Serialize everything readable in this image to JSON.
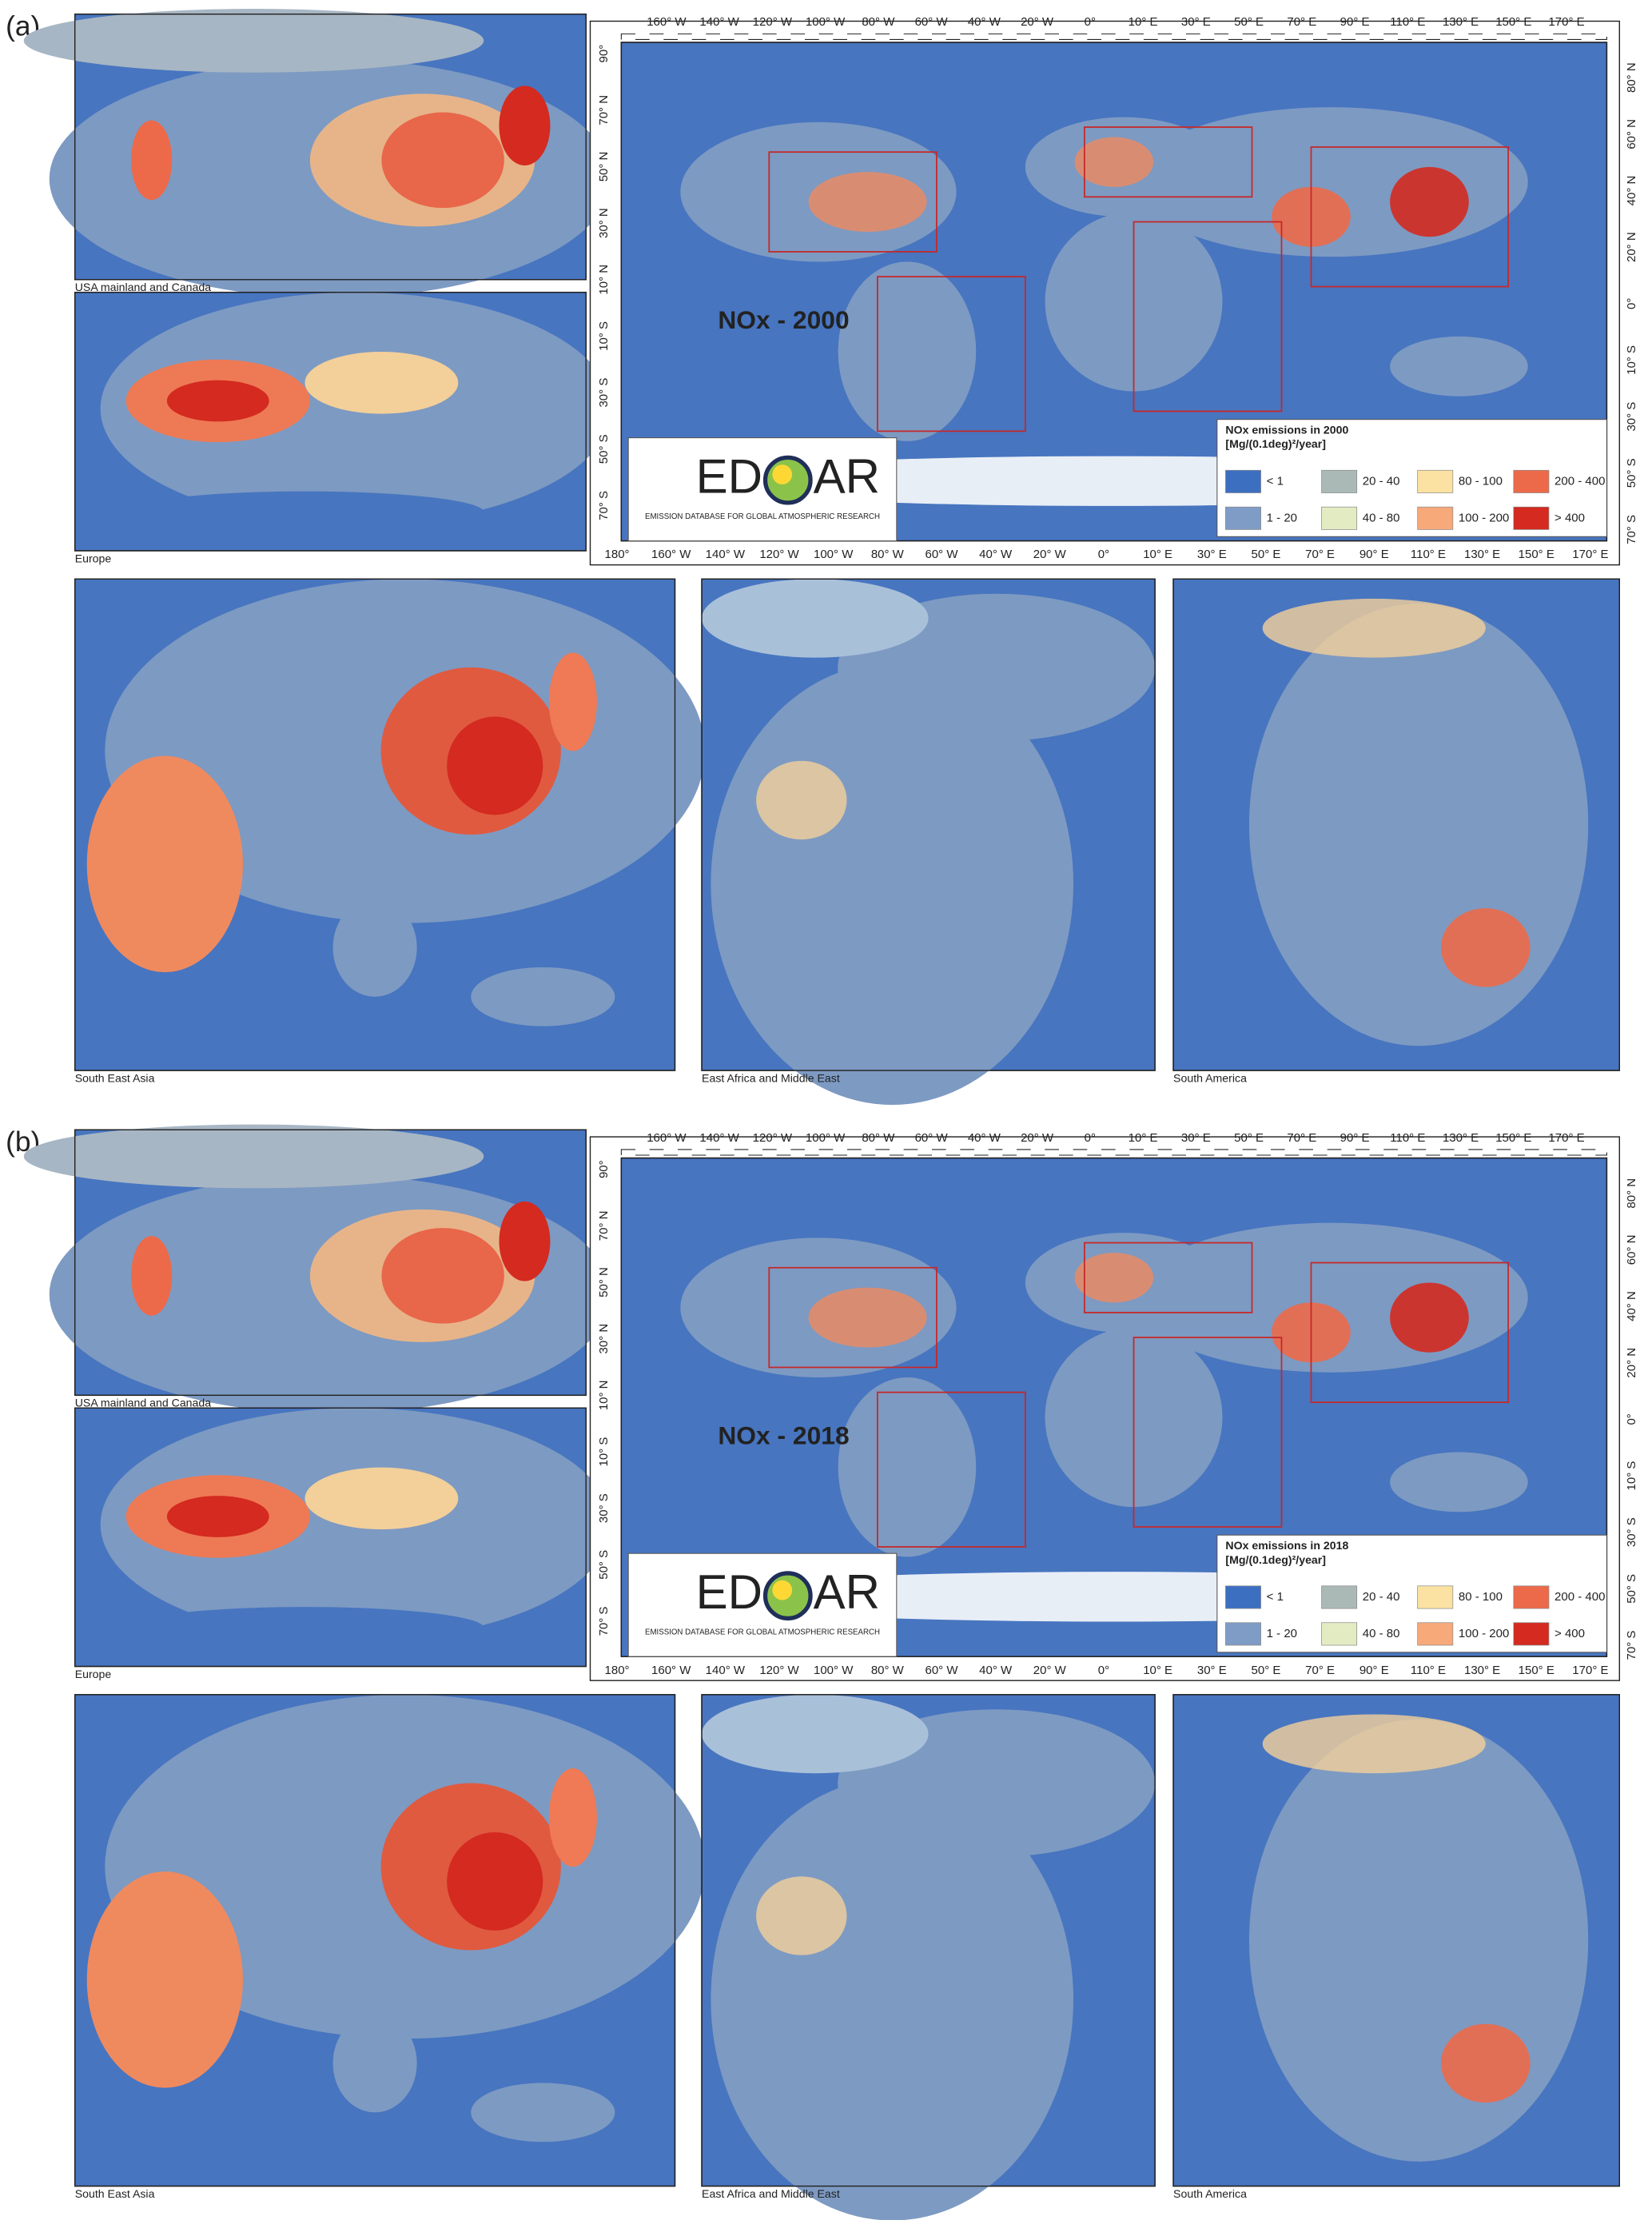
{
  "panels": [
    {
      "label": "(a)",
      "title": "NOx - 2000",
      "legend": {
        "title": "NOx emissions in 2000",
        "unit": "[Mg/(0.1deg)²/year]"
      },
      "insets": [
        "USA mainland and Canada",
        "Europe",
        "South East Asia",
        "East Africa and Middle East",
        "South America"
      ]
    },
    {
      "label": "(b)",
      "title": "NOx - 2018",
      "legend": {
        "title": "NOx emissions in 2018",
        "unit": "[Mg/(0.1deg)²/year]"
      },
      "insets": [
        "USA mainland and Canada",
        "Europe",
        "South East Asia",
        "East Africa and Middle East",
        "South America"
      ]
    }
  ],
  "legend_items": [
    {
      "label": "< 1",
      "color": "#3d6fc1"
    },
    {
      "label": "1 - 20",
      "color": "#7f9cc6"
    },
    {
      "label": "20 - 40",
      "color": "#aab9b6"
    },
    {
      "label": "40 - 80",
      "color": "#e2ebc2"
    },
    {
      "label": "80 - 100",
      "color": "#fbe2a2"
    },
    {
      "label": "100 - 200",
      "color": "#f7a97a"
    },
    {
      "label": "200 - 400",
      "color": "#ec6a4a"
    },
    {
      "label": "> 400",
      "color": "#d42a20"
    }
  ],
  "axes": {
    "lon_top": [
      "160° W",
      "140° W",
      "120° W",
      "100° W",
      "80° W",
      "60° W",
      "40° W",
      "20° W",
      "0°",
      "10° E",
      "30° E",
      "50° E",
      "70° E",
      "90° E",
      "110° E",
      "130° E",
      "150° E",
      "170° E"
    ],
    "lon_bottom": [
      "180°",
      "160° W",
      "140° W",
      "120° W",
      "100° W",
      "80° W",
      "60° W",
      "40° W",
      "20° W",
      "0°",
      "10° E",
      "30° E",
      "50° E",
      "70° E",
      "90° E",
      "110° E",
      "130° E",
      "150° E",
      "170° E"
    ],
    "lat_left": [
      "90°",
      "70° N",
      "50° N",
      "30° N",
      "10° N",
      "10° S",
      "30° S",
      "50° S",
      "70° S"
    ],
    "lat_right": [
      "80° N",
      "60° N",
      "40° N",
      "20° N",
      "0°",
      "10° S",
      "30° S",
      "50° S",
      "70° S"
    ]
  },
  "logo": {
    "prefix": "ED",
    "suffix": "AR",
    "tagline": "EMISSION DATABASE FOR GLOBAL ATMOSPHERIC RESEARCH"
  }
}
